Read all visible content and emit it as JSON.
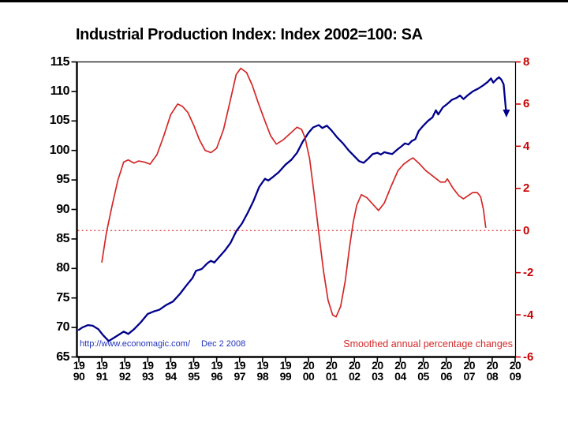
{
  "title": "Industrial Production Index: Index 2002=100: SA",
  "annotations": {
    "source_url": "http://www.economagic.com/",
    "date": "Dec 2 2008",
    "series2_label": "Smoothed annual percentage changes"
  },
  "colors": {
    "index_line": "#00008b",
    "pct_line": "#d42727",
    "zero_line": "#e03030",
    "right_axis_text": "#cc0000",
    "axis": "#000000",
    "source_text": "#2233bb"
  },
  "chart_data": {
    "type": "line",
    "title": "Industrial Production Index: Index 2002=100: SA",
    "grid": false,
    "left_axis": {
      "min": 65,
      "max": 115,
      "ticks": [
        115,
        110,
        105,
        100,
        95,
        90,
        85,
        80,
        75,
        70,
        65
      ]
    },
    "right_axis": {
      "min": -6,
      "max": 8,
      "ticks": [
        8,
        6,
        4,
        2,
        0,
        -2,
        -4,
        -6
      ],
      "labels": [
        "8",
        "6",
        "4",
        "2",
        "0",
        "-2",
        "-4",
        "-6"
      ]
    },
    "x_axis": {
      "min": 1990,
      "max": 2009,
      "ticks": [
        {
          "year": 1990,
          "line1": "19",
          "line2": "90"
        },
        {
          "year": 1991,
          "line1": "19",
          "line2": "91"
        },
        {
          "year": 1992,
          "line1": "19",
          "line2": "92"
        },
        {
          "year": 1993,
          "line1": "19",
          "line2": "93"
        },
        {
          "year": 1994,
          "line1": "19",
          "line2": "94"
        },
        {
          "year": 1995,
          "line1": "19",
          "line2": "95"
        },
        {
          "year": 1996,
          "line1": "19",
          "line2": "96"
        },
        {
          "year": 1997,
          "line1": "19",
          "line2": "97"
        },
        {
          "year": 1998,
          "line1": "19",
          "line2": "98"
        },
        {
          "year": 1999,
          "line1": "19",
          "line2": "99"
        },
        {
          "year": 2000,
          "line1": "20",
          "line2": "00"
        },
        {
          "year": 2001,
          "line1": "20",
          "line2": "01"
        },
        {
          "year": 2002,
          "line1": "20",
          "line2": "02"
        },
        {
          "year": 2003,
          "line1": "20",
          "line2": "03"
        },
        {
          "year": 2004,
          "line1": "20",
          "line2": "04"
        },
        {
          "year": 2005,
          "line1": "20",
          "line2": "05"
        },
        {
          "year": 2006,
          "line1": "20",
          "line2": "06"
        },
        {
          "year": 2007,
          "line1": "20",
          "line2": "07"
        },
        {
          "year": 2008,
          "line1": "20",
          "line2": "08"
        },
        {
          "year": 2009,
          "line1": "20",
          "line2": "09"
        }
      ]
    },
    "zero_line": {
      "axis": "right",
      "value": 0,
      "style": "dotted",
      "color": "#e03030"
    },
    "series": [
      {
        "name": "Industrial Production Index",
        "axis": "left",
        "color": "#00008b",
        "end_marker": "arrow-down",
        "points": [
          [
            1990.0,
            69.6
          ],
          [
            1990.15,
            70.0
          ],
          [
            1990.4,
            70.4
          ],
          [
            1990.6,
            70.3
          ],
          [
            1990.85,
            69.7
          ],
          [
            1991.05,
            68.7
          ],
          [
            1991.3,
            67.7
          ],
          [
            1991.5,
            68.2
          ],
          [
            1991.75,
            68.8
          ],
          [
            1991.95,
            69.3
          ],
          [
            1992.15,
            68.9
          ],
          [
            1992.4,
            69.7
          ],
          [
            1992.7,
            70.9
          ],
          [
            1993.0,
            72.3
          ],
          [
            1993.25,
            72.7
          ],
          [
            1993.5,
            73.0
          ],
          [
            1993.8,
            73.8
          ],
          [
            1994.1,
            74.4
          ],
          [
            1994.4,
            75.7
          ],
          [
            1994.7,
            77.2
          ],
          [
            1994.95,
            78.4
          ],
          [
            1995.1,
            79.6
          ],
          [
            1995.35,
            79.9
          ],
          [
            1995.6,
            80.9
          ],
          [
            1995.75,
            81.3
          ],
          [
            1995.9,
            81.0
          ],
          [
            1996.1,
            81.9
          ],
          [
            1996.35,
            83.0
          ],
          [
            1996.6,
            84.3
          ],
          [
            1996.85,
            86.3
          ],
          [
            1997.1,
            87.6
          ],
          [
            1997.35,
            89.4
          ],
          [
            1997.6,
            91.4
          ],
          [
            1997.85,
            93.8
          ],
          [
            1998.1,
            95.2
          ],
          [
            1998.25,
            94.9
          ],
          [
            1998.45,
            95.5
          ],
          [
            1998.7,
            96.3
          ],
          [
            1999.0,
            97.6
          ],
          [
            1999.25,
            98.4
          ],
          [
            1999.5,
            99.6
          ],
          [
            1999.75,
            101.5
          ],
          [
            2000.0,
            103.0
          ],
          [
            2000.2,
            103.9
          ],
          [
            2000.45,
            104.3
          ],
          [
            2000.6,
            103.8
          ],
          [
            2000.8,
            104.2
          ],
          [
            2001.0,
            103.4
          ],
          [
            2001.25,
            102.2
          ],
          [
            2001.5,
            101.2
          ],
          [
            2001.75,
            100.0
          ],
          [
            2002.0,
            99.0
          ],
          [
            2002.2,
            98.2
          ],
          [
            2002.4,
            97.9
          ],
          [
            2002.6,
            98.6
          ],
          [
            2002.8,
            99.4
          ],
          [
            2003.0,
            99.6
          ],
          [
            2003.15,
            99.3
          ],
          [
            2003.3,
            99.7
          ],
          [
            2003.5,
            99.5
          ],
          [
            2003.65,
            99.4
          ],
          [
            2003.85,
            100.1
          ],
          [
            2004.05,
            100.7
          ],
          [
            2004.2,
            101.2
          ],
          [
            2004.35,
            101.0
          ],
          [
            2004.5,
            101.6
          ],
          [
            2004.65,
            101.9
          ],
          [
            2004.8,
            103.3
          ],
          [
            2005.0,
            104.2
          ],
          [
            2005.2,
            105.0
          ],
          [
            2005.4,
            105.6
          ],
          [
            2005.55,
            106.8
          ],
          [
            2005.65,
            106.1
          ],
          [
            2005.85,
            107.3
          ],
          [
            2006.05,
            107.9
          ],
          [
            2006.25,
            108.6
          ],
          [
            2006.45,
            108.9
          ],
          [
            2006.6,
            109.3
          ],
          [
            2006.75,
            108.7
          ],
          [
            2006.95,
            109.4
          ],
          [
            2007.15,
            110.0
          ],
          [
            2007.4,
            110.5
          ],
          [
            2007.6,
            111.0
          ],
          [
            2007.8,
            111.6
          ],
          [
            2007.95,
            112.2
          ],
          [
            2008.05,
            111.5
          ],
          [
            2008.2,
            112.1
          ],
          [
            2008.3,
            112.4
          ],
          [
            2008.4,
            112.0
          ],
          [
            2008.5,
            111.2
          ],
          [
            2008.62,
            106.0
          ]
        ]
      },
      {
        "name": "Smoothed annual percentage changes",
        "axis": "right",
        "color": "#d42727",
        "end_marker": "none",
        "points": [
          [
            1991.0,
            -1.5
          ],
          [
            1991.2,
            -0.1
          ],
          [
            1991.45,
            1.2
          ],
          [
            1991.7,
            2.4
          ],
          [
            1991.95,
            3.25
          ],
          [
            1992.15,
            3.35
          ],
          [
            1992.4,
            3.2
          ],
          [
            1992.6,
            3.3
          ],
          [
            1992.85,
            3.25
          ],
          [
            1993.1,
            3.15
          ],
          [
            1993.4,
            3.6
          ],
          [
            1993.7,
            4.5
          ],
          [
            1994.0,
            5.5
          ],
          [
            1994.3,
            6.0
          ],
          [
            1994.5,
            5.9
          ],
          [
            1994.75,
            5.6
          ],
          [
            1995.0,
            5.0
          ],
          [
            1995.25,
            4.3
          ],
          [
            1995.5,
            3.8
          ],
          [
            1995.75,
            3.7
          ],
          [
            1996.0,
            3.9
          ],
          [
            1996.3,
            4.8
          ],
          [
            1996.6,
            6.2
          ],
          [
            1996.85,
            7.4
          ],
          [
            1997.05,
            7.7
          ],
          [
            1997.3,
            7.5
          ],
          [
            1997.55,
            6.9
          ],
          [
            1997.8,
            6.1
          ],
          [
            1998.1,
            5.2
          ],
          [
            1998.35,
            4.5
          ],
          [
            1998.6,
            4.1
          ],
          [
            1998.9,
            4.3
          ],
          [
            1999.2,
            4.6
          ],
          [
            1999.5,
            4.9
          ],
          [
            1999.7,
            4.8
          ],
          [
            1999.85,
            4.4
          ],
          [
            2000.05,
            3.4
          ],
          [
            2000.25,
            1.7
          ],
          [
            2000.45,
            -0.1
          ],
          [
            2000.65,
            -1.9
          ],
          [
            2000.85,
            -3.3
          ],
          [
            2001.05,
            -4.0
          ],
          [
            2001.2,
            -4.1
          ],
          [
            2001.4,
            -3.6
          ],
          [
            2001.6,
            -2.4
          ],
          [
            2001.8,
            -0.7
          ],
          [
            2001.95,
            0.4
          ],
          [
            2002.1,
            1.2
          ],
          [
            2002.3,
            1.7
          ],
          [
            2002.55,
            1.55
          ],
          [
            2002.8,
            1.25
          ],
          [
            2003.05,
            0.95
          ],
          [
            2003.3,
            1.3
          ],
          [
            2003.6,
            2.1
          ],
          [
            2003.9,
            2.85
          ],
          [
            2004.15,
            3.15
          ],
          [
            2004.4,
            3.35
          ],
          [
            2004.55,
            3.45
          ],
          [
            2004.8,
            3.2
          ],
          [
            2005.1,
            2.85
          ],
          [
            2005.45,
            2.55
          ],
          [
            2005.75,
            2.3
          ],
          [
            2005.95,
            2.3
          ],
          [
            2006.05,
            2.45
          ],
          [
            2006.3,
            2.0
          ],
          [
            2006.55,
            1.65
          ],
          [
            2006.75,
            1.5
          ],
          [
            2006.95,
            1.65
          ],
          [
            2007.15,
            1.8
          ],
          [
            2007.35,
            1.8
          ],
          [
            2007.5,
            1.6
          ],
          [
            2007.62,
            1.0
          ],
          [
            2007.72,
            0.15
          ]
        ]
      }
    ]
  }
}
